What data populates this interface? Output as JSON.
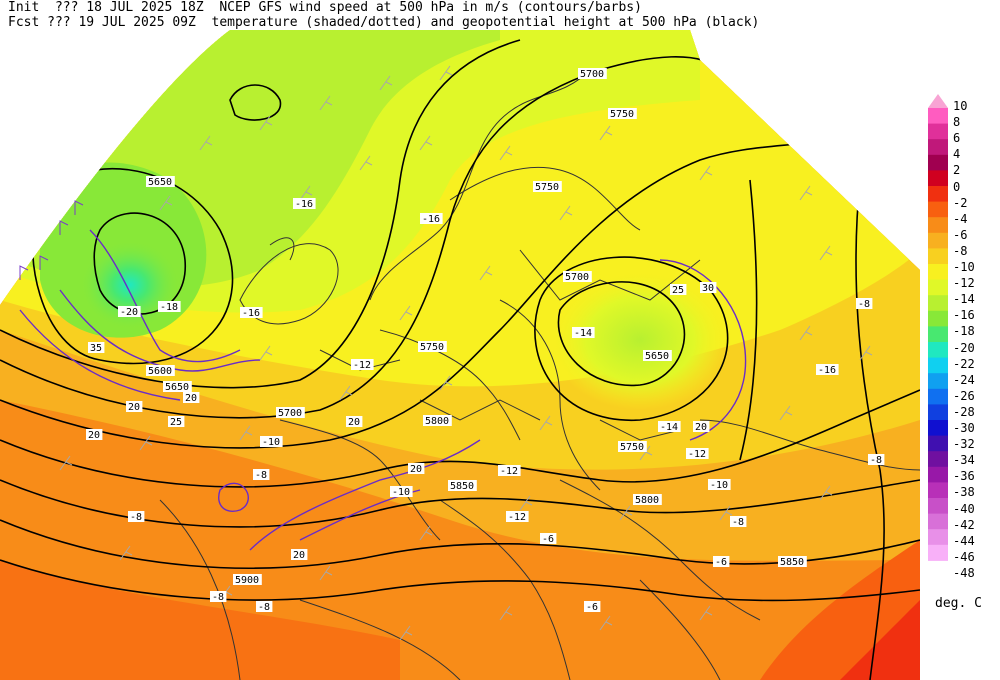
{
  "header": {
    "init_line": "Init  ??? 18 JUL 2025 18Z  NCEP GFS wind speed at 500 hPa in m/s (contours/barbs)",
    "fcst_line": "Fcst ??? 19 JUL 2025 09Z  temperature (shaded/dotted) and geopotential height at 500 hPa (black)"
  },
  "legend": {
    "units": "deg. C",
    "levels": [
      {
        "label": "10",
        "color": "#f8a4d4"
      },
      {
        "label": "8",
        "color": "#ff5cc0"
      },
      {
        "label": "6",
        "color": "#e0309a"
      },
      {
        "label": "4",
        "color": "#c0187a"
      },
      {
        "label": "2",
        "color": "#a00050"
      },
      {
        "label": "0",
        "color": "#d00020"
      },
      {
        "label": "-2",
        "color": "#f03010"
      },
      {
        "label": "-4",
        "color": "#f86010"
      },
      {
        "label": "-6",
        "color": "#f88c18"
      },
      {
        "label": "-8",
        "color": "#f8b020"
      },
      {
        "label": "-10",
        "color": "#f8d020"
      },
      {
        "label": "-12",
        "color": "#f8f020"
      },
      {
        "label": "-14",
        "color": "#e0f828"
      },
      {
        "label": "-16",
        "color": "#b8f030"
      },
      {
        "label": "-18",
        "color": "#88e838"
      },
      {
        "label": "-20",
        "color": "#48e870"
      },
      {
        "label": "-22",
        "color": "#20e8c0"
      },
      {
        "label": "-24",
        "color": "#10d0f0"
      },
      {
        "label": "-26",
        "color": "#10a0f0"
      },
      {
        "label": "-28",
        "color": "#1070f0"
      },
      {
        "label": "-30",
        "color": "#1040e0"
      },
      {
        "label": "-32",
        "color": "#1010d0"
      },
      {
        "label": "-34",
        "color": "#4010b0"
      },
      {
        "label": "-36",
        "color": "#7010a0"
      },
      {
        "label": "-38",
        "color": "#9818a8"
      },
      {
        "label": "-40",
        "color": "#b830b8"
      },
      {
        "label": "-42",
        "color": "#c850c8"
      },
      {
        "label": "-44",
        "color": "#d870d8"
      },
      {
        "label": "-46",
        "color": "#e890e8"
      },
      {
        "label": "-48",
        "color": "#f8b0f8"
      }
    ]
  },
  "map": {
    "height_labels": [
      "5700",
      "5750",
      "5650",
      "5750",
      "5700",
      "5650",
      "5750",
      "5650",
      "5600",
      "5700",
      "5800",
      "5850",
      "5750",
      "5800",
      "5850",
      "5900"
    ],
    "temp_labels": [
      "-16",
      "-18",
      "-20",
      "-16",
      "-14",
      "-16",
      "-12",
      "-10",
      "-8",
      "-12",
      "-14",
      "-12",
      "-10",
      "-12",
      "-8",
      "-16",
      "-8",
      "-8",
      "-10",
      "-8",
      "-8",
      "-6",
      "-6",
      "-8",
      "-6"
    ],
    "wind_labels": [
      "25",
      "30",
      "35",
      "20",
      "20",
      "20",
      "25",
      "20",
      "20",
      "20",
      "20"
    ]
  }
}
